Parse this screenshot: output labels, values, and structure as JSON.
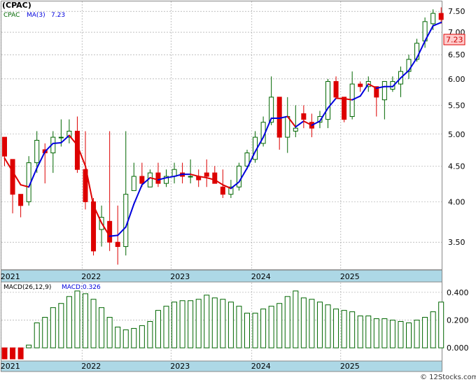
{
  "title": "(CPAC)",
  "legend": {
    "ticker": "CPAC",
    "ma_label": "MA(3)",
    "ma_value": "7.23"
  },
  "price_tag": "7.23",
  "macd_legend": {
    "name": "MACD(26,12,9)",
    "value_label": "MACD:0.326"
  },
  "watermark": "© 12Stocks.com",
  "colors": {
    "up": "#006600",
    "down": "#dd0000",
    "ma_up": "#0000dd",
    "ma_down": "#dd0000",
    "axis_band": "#add8e6",
    "macd_bar": "#006600",
    "price_tag_bg": "#ffcccc"
  },
  "chart_data": [
    {
      "type": "candlestick",
      "title": "(CPAC)",
      "scale": "log",
      "ylim": [
        3.2,
        7.75
      ],
      "y_ticks": [
        "3.50",
        "4.00",
        "4.50",
        "5.00",
        "5.50",
        "6.00",
        "6.50",
        "7.00",
        "7.50"
      ],
      "x_tick_labels": [
        "2021",
        "2022",
        "2023",
        "2024",
        "2025"
      ],
      "x_tick_index": [
        0,
        10,
        21,
        31,
        42
      ],
      "grid": true,
      "ohlc": [
        [
          4.95,
          4.95,
          4.5,
          4.65
        ],
        [
          4.6,
          4.6,
          3.85,
          4.1
        ],
        [
          4.1,
          4.1,
          3.8,
          3.95
        ],
        [
          4.0,
          4.65,
          3.95,
          4.55
        ],
        [
          4.55,
          5.05,
          4.4,
          4.9
        ],
        [
          4.75,
          4.85,
          4.25,
          4.7
        ],
        [
          4.7,
          5.05,
          4.4,
          4.95
        ],
        [
          4.95,
          5.25,
          4.8,
          4.95
        ],
        [
          4.95,
          5.25,
          4.85,
          5.05
        ],
        [
          5.05,
          5.3,
          4.4,
          4.45
        ],
        [
          4.45,
          5.05,
          3.9,
          4.0
        ],
        [
          4.0,
          4.05,
          3.35,
          3.4
        ],
        [
          3.65,
          3.95,
          3.45,
          3.8
        ],
        [
          3.75,
          5.05,
          3.4,
          3.5
        ],
        [
          3.5,
          3.95,
          3.25,
          3.45
        ],
        [
          3.45,
          5.05,
          3.35,
          4.1
        ],
        [
          4.15,
          4.55,
          4.15,
          4.35
        ],
        [
          4.35,
          4.55,
          4.2,
          4.25
        ],
        [
          4.2,
          4.45,
          4.2,
          4.4
        ],
        [
          4.4,
          4.55,
          4.2,
          4.25
        ],
        [
          4.25,
          4.45,
          4.2,
          4.35
        ],
        [
          4.35,
          4.55,
          4.25,
          4.45
        ],
        [
          4.4,
          4.55,
          4.25,
          4.35
        ],
        [
          4.35,
          4.6,
          4.25,
          4.35
        ],
        [
          4.35,
          4.45,
          4.2,
          4.3
        ],
        [
          4.4,
          4.6,
          4.2,
          4.35
        ],
        [
          4.4,
          4.5,
          4.25,
          4.25
        ],
        [
          4.2,
          4.45,
          4.05,
          4.1
        ],
        [
          4.1,
          4.3,
          4.05,
          4.2
        ],
        [
          4.2,
          4.55,
          4.15,
          4.5
        ],
        [
          4.5,
          4.75,
          4.45,
          4.7
        ],
        [
          4.6,
          5.05,
          4.55,
          4.95
        ],
        [
          4.85,
          5.3,
          4.8,
          5.2
        ],
        [
          5.2,
          6.05,
          5.15,
          5.65
        ],
        [
          5.65,
          5.65,
          4.75,
          4.95
        ],
        [
          4.95,
          5.65,
          4.7,
          5.3
        ],
        [
          5.05,
          5.5,
          4.95,
          5.1
        ],
        [
          5.35,
          5.5,
          5.1,
          5.25
        ],
        [
          5.2,
          5.35,
          4.95,
          5.1
        ],
        [
          5.2,
          5.4,
          5.1,
          5.3
        ],
        [
          5.25,
          6.0,
          5.1,
          5.95
        ],
        [
          5.95,
          6.05,
          5.65,
          5.65
        ],
        [
          5.65,
          5.65,
          5.2,
          5.25
        ],
        [
          5.3,
          6.15,
          5.25,
          5.9
        ],
        [
          5.9,
          5.95,
          5.75,
          5.85
        ],
        [
          5.85,
          6.05,
          5.75,
          5.95
        ],
        [
          5.85,
          5.85,
          5.3,
          5.65
        ],
        [
          5.6,
          5.95,
          5.25,
          5.95
        ],
        [
          5.8,
          6.05,
          5.75,
          5.95
        ],
        [
          5.9,
          6.25,
          5.65,
          6.15
        ],
        [
          6.15,
          6.5,
          6.0,
          6.4
        ],
        [
          6.4,
          6.85,
          6.35,
          6.75
        ],
        [
          6.8,
          7.35,
          6.65,
          7.25
        ],
        [
          7.2,
          7.55,
          7.05,
          7.45
        ],
        [
          7.45,
          7.6,
          7.2,
          7.3
        ]
      ],
      "ma3": [
        4.62,
        4.42,
        4.23,
        4.2,
        4.47,
        4.72,
        4.85,
        4.86,
        4.98,
        4.82,
        4.5,
        3.95,
        3.73,
        3.57,
        3.58,
        3.68,
        3.97,
        4.23,
        4.33,
        4.3,
        4.33,
        4.35,
        4.38,
        4.38,
        4.35,
        4.33,
        4.3,
        4.23,
        4.18,
        4.27,
        4.47,
        4.72,
        4.95,
        5.27,
        5.27,
        5.3,
        5.12,
        5.22,
        5.15,
        5.22,
        5.45,
        5.63,
        5.62,
        5.6,
        5.67,
        5.9,
        5.82,
        5.85,
        5.85,
        6.02,
        6.17,
        6.43,
        6.8,
        7.15,
        7.23
      ]
    },
    {
      "type": "bar",
      "title": "MACD(26,12,9)",
      "ylim": [
        -0.09,
        0.47
      ],
      "y_ticks": [
        "0.000",
        "0.200",
        "0.400"
      ],
      "x_tick_labels": [
        "2021",
        "2022",
        "2023",
        "2024",
        "2025"
      ],
      "values": [
        -0.08,
        -0.08,
        -0.08,
        0.02,
        0.18,
        0.22,
        0.29,
        0.32,
        0.37,
        0.41,
        0.39,
        0.35,
        0.29,
        0.22,
        0.15,
        0.13,
        0.14,
        0.16,
        0.19,
        0.27,
        0.3,
        0.33,
        0.34,
        0.34,
        0.35,
        0.38,
        0.36,
        0.35,
        0.33,
        0.3,
        0.25,
        0.25,
        0.28,
        0.3,
        0.32,
        0.37,
        0.41,
        0.36,
        0.35,
        0.33,
        0.31,
        0.28,
        0.27,
        0.26,
        0.23,
        0.23,
        0.21,
        0.21,
        0.2,
        0.19,
        0.18,
        0.2,
        0.22,
        0.26,
        0.33
      ]
    }
  ]
}
